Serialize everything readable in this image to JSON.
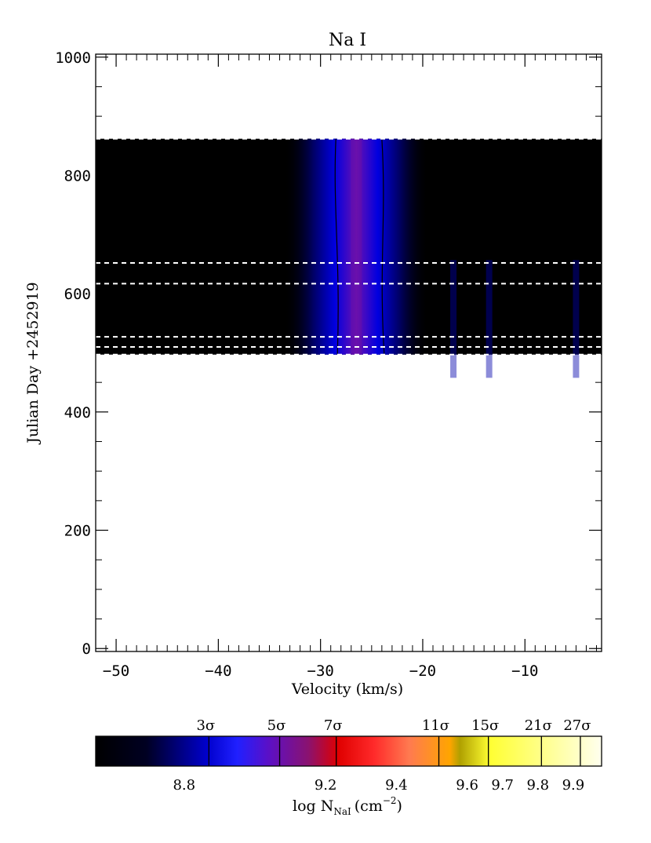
{
  "chart_data": {
    "type": "heatmap",
    "title": "Na I",
    "xlabel": "Velocity (km/s)",
    "ylabel": "Julian Day +2452919",
    "xlim": [
      -52,
      -2.5
    ],
    "ylim": [
      -5,
      1005
    ],
    "x_ticks": [
      -50,
      -40,
      -30,
      -20,
      -10
    ],
    "y_ticks": [
      0,
      200,
      400,
      600,
      800,
      1000
    ],
    "observation_days": [
      497,
      510,
      527,
      617,
      652,
      862
    ],
    "band_y_range": [
      497,
      862
    ],
    "absorption_center_velocity": -26.5,
    "background_color": "#000000",
    "colorbar": {
      "label_main": "log N",
      "label_sub": "NaI",
      "label_unit": "(cm",
      "label_exp": "−2",
      "label_close": ")",
      "range": [
        8.55,
        9.98
      ],
      "ticks": [
        {
          "value": 8.8,
          "label": "8.8"
        },
        {
          "value": 9.2,
          "label": "9.2"
        },
        {
          "value": 9.4,
          "label": "9.4"
        },
        {
          "value": 9.6,
          "label": "9.6"
        },
        {
          "value": 9.7,
          "label": "9.7"
        },
        {
          "value": 9.8,
          "label": "9.8"
        },
        {
          "value": 9.9,
          "label": "9.9"
        }
      ],
      "sigma_levels": [
        {
          "value": 8.87,
          "label": "3σ"
        },
        {
          "value": 9.07,
          "label": "5σ"
        },
        {
          "value": 9.23,
          "label": "7σ"
        },
        {
          "value": 9.52,
          "label": "11σ"
        },
        {
          "value": 9.66,
          "label": "15σ"
        },
        {
          "value": 9.81,
          "label": "21σ"
        },
        {
          "value": 9.92,
          "label": "27σ"
        }
      ],
      "color_stops": [
        {
          "pos": 0.0,
          "color": "#000000"
        },
        {
          "pos": 0.1,
          "color": "#000022"
        },
        {
          "pos": 0.22,
          "color": "#0000cc"
        },
        {
          "pos": 0.28,
          "color": "#2020ff"
        },
        {
          "pos": 0.34,
          "color": "#5a10c8"
        },
        {
          "pos": 0.42,
          "color": "#8a1270"
        },
        {
          "pos": 0.48,
          "color": "#e00000"
        },
        {
          "pos": 0.55,
          "color": "#ff2a2a"
        },
        {
          "pos": 0.62,
          "color": "#ff7a50"
        },
        {
          "pos": 0.7,
          "color": "#ffa500"
        },
        {
          "pos": 0.72,
          "color": "#b0a000"
        },
        {
          "pos": 0.78,
          "color": "#ffff33"
        },
        {
          "pos": 0.9,
          "color": "#ffff99"
        },
        {
          "pos": 1.0,
          "color": "#ffffee"
        }
      ]
    }
  }
}
